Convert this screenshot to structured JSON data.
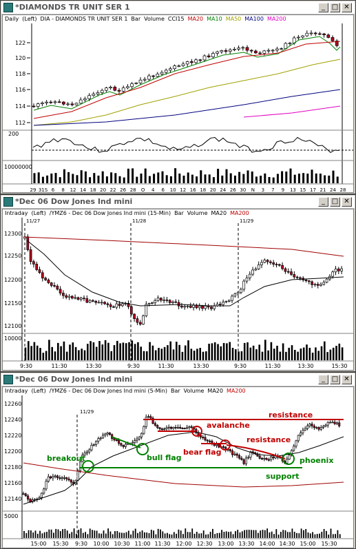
{
  "windows": [
    {
      "title": "*DIAMONDS TR UNIT SER 1",
      "legend": [
        {
          "text": "Daily",
          "color": "#000000"
        },
        {
          "text": "(Left)",
          "color": "#000000"
        },
        {
          "text": "DIA - DIAMONDS TR UNIT SER 1",
          "color": "#000000"
        },
        {
          "text": "Bar",
          "color": "#000000"
        },
        {
          "text": "Volume",
          "color": "#000000"
        },
        {
          "text": "CCI15",
          "color": "#000000"
        },
        {
          "text": "MA20",
          "color": "#c00000"
        },
        {
          "text": "MA10",
          "color": "#008000"
        },
        {
          "text": "MA50",
          "color": "#a0a000"
        },
        {
          "text": "MA100",
          "color": "#000080"
        },
        {
          "text": "MA200",
          "color": "#e000c0"
        }
      ],
      "price_axis": [
        "122",
        "120",
        "118",
        "116",
        "114",
        "112"
      ],
      "cci_axis": [
        "200"
      ],
      "vol_axis": [
        "10000000"
      ],
      "date_axis": [
        "29",
        "31S",
        "6",
        "8",
        "12",
        "14",
        "18",
        "20",
        "22",
        "26",
        "28",
        "O",
        "4",
        "6",
        "10",
        "12",
        "16",
        "18",
        "20",
        "24",
        "26",
        "30",
        "N",
        "3",
        "7",
        "9",
        "13",
        "15",
        "17",
        "21",
        "24",
        "28"
      ]
    },
    {
      "title": "*Dec 06  Dow Jones Ind mini",
      "legend": [
        {
          "text": "Intraday",
          "color": "#000000"
        },
        {
          "text": "(Left)",
          "color": "#000000"
        },
        {
          "text": "/YMZ6 - Dec 06  Dow Jones Ind mini  (15-Min)",
          "color": "#000000"
        },
        {
          "text": "Bar",
          "color": "#000000"
        },
        {
          "text": "Volume",
          "color": "#000000"
        },
        {
          "text": "MA20",
          "color": "#000000"
        },
        {
          "text": "MA200",
          "color": "#c00000"
        }
      ],
      "session_labels": [
        "11/27",
        "11/28",
        "11/29"
      ],
      "price_axis": [
        "12300",
        "12250",
        "12200",
        "12150",
        "12100"
      ],
      "vol_axis": [
        "10000"
      ],
      "time_axis": [
        "9:30",
        "11:30",
        "13:30",
        "9:30",
        "11:30",
        "13:30",
        "9:30",
        "11:30",
        "13:30",
        "15:30"
      ]
    },
    {
      "title": "*Dec 06  Dow Jones Ind mini",
      "legend": [
        {
          "text": "Intraday",
          "color": "#000000"
        },
        {
          "text": "(Left)",
          "color": "#000000"
        },
        {
          "text": "/YMZ6 - Dec 06  Dow Jones Ind mini  (5-Min)",
          "color": "#000000"
        },
        {
          "text": "Bar",
          "color": "#000000"
        },
        {
          "text": "Volume",
          "color": "#000000"
        },
        {
          "text": "MA20",
          "color": "#000000"
        },
        {
          "text": "MA200",
          "color": "#c00000"
        }
      ],
      "session_labels": [
        "11/29"
      ],
      "price_axis": [
        "12260",
        "12240",
        "12220",
        "12200",
        "12180",
        "12160",
        "12140"
      ],
      "vol_axis": [
        "5000"
      ],
      "time_axis": [
        "15:00",
        "15:30",
        "9:30",
        "10:00",
        "10:30",
        "11:00",
        "11:30",
        "12:00",
        "12:30",
        "13:00",
        "13:30",
        "14:00",
        "14:30",
        "15:00",
        "15:30"
      ],
      "annotations": {
        "breakout": "breakout",
        "bull_flag": "bull flag",
        "avalanche": "avalanche",
        "bear_flag": "bear flag",
        "resistance_top": "resistance",
        "resistance_mid": "resistance",
        "support": "support",
        "phoenix": "phoenix"
      }
    }
  ],
  "colors": {
    "up_candle": "#ffffff",
    "down_candle": "#b00020",
    "ma20_daily": "#c00000",
    "ma10_daily": "#008000",
    "ma50_daily": "#a0a000",
    "ma100_daily": "#000080",
    "ma200_daily": "#e000c0",
    "ma200_intraday": "#a00000",
    "annotation_green": "#008000",
    "annotation_red": "#c00000"
  }
}
